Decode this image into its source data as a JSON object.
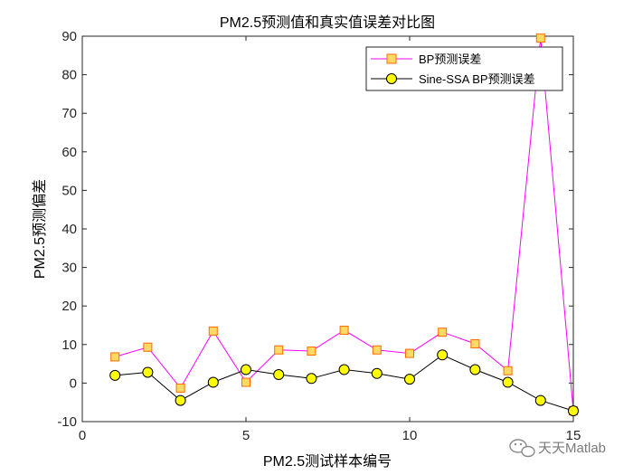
{
  "chart_data": {
    "type": "line",
    "title": "PM2.5预测值和真实值误差对比图",
    "xlabel": "PM2.5测试样本编号",
    "ylabel": "PM2.5预测偏差",
    "xlim": [
      0,
      15
    ],
    "ylim": [
      -10,
      90
    ],
    "xticks": [
      0,
      5,
      10,
      15
    ],
    "yticks": [
      -10,
      0,
      10,
      20,
      30,
      40,
      50,
      60,
      70,
      80,
      90
    ],
    "x": [
      1,
      2,
      3,
      4,
      5,
      6,
      7,
      8,
      9,
      10,
      11,
      12,
      13,
      14,
      15
    ],
    "series": [
      {
        "name": "BP预测误差",
        "marker": "square",
        "line_color": "#ff00ff",
        "marker_fill": "#ffd966",
        "marker_edge": "#ff6a00",
        "values": [
          6.8,
          9.3,
          -1.3,
          13.5,
          0.2,
          8.6,
          8.3,
          13.7,
          8.6,
          7.7,
          13.2,
          10.2,
          3.2,
          89.5,
          -7.2
        ]
      },
      {
        "name": "Sine-SSA BP预测误差",
        "marker": "circle",
        "line_color": "#000000",
        "marker_fill": "#ffff00",
        "marker_edge": "#000000",
        "values": [
          2.0,
          2.8,
          -4.5,
          0.2,
          3.5,
          2.2,
          1.2,
          3.5,
          2.5,
          1.0,
          7.3,
          3.5,
          0.2,
          -4.5,
          -7.2
        ]
      }
    ],
    "legend_position": "top-right",
    "grid": false
  },
  "watermark": {
    "text": "天天Matlab",
    "icon": "wechat-icon"
  }
}
